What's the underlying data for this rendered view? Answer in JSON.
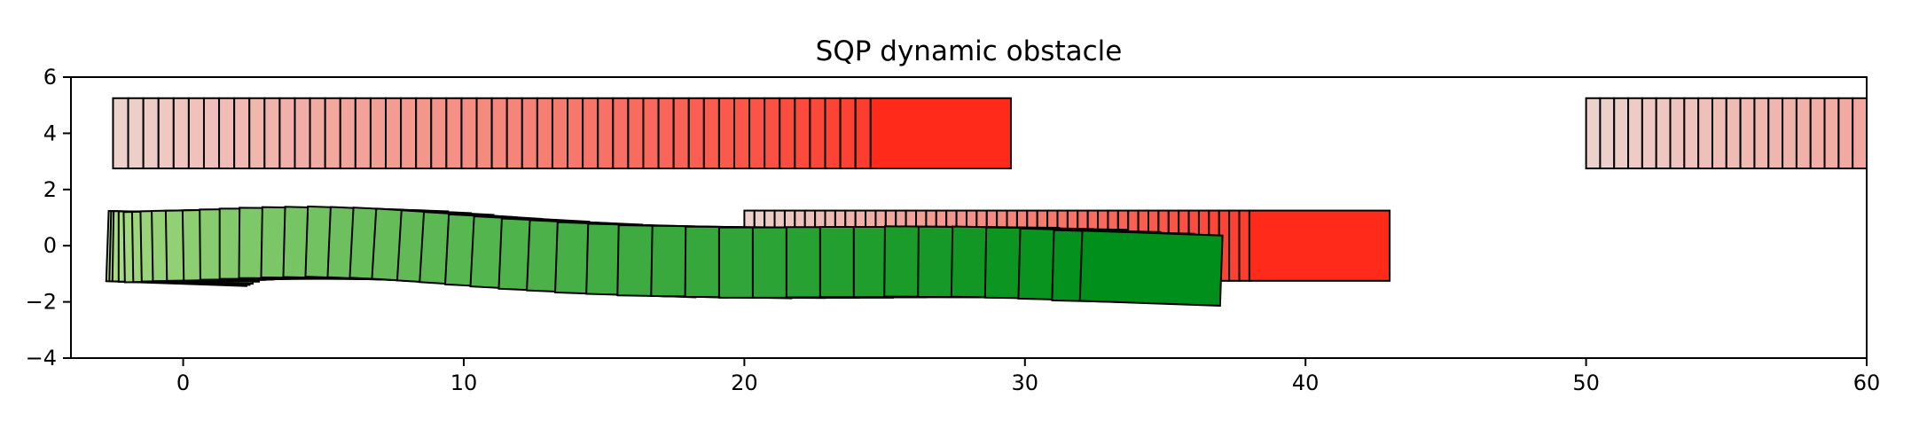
{
  "chart_data": {
    "type": "patches",
    "title": "SQP dynamic obstacle",
    "xlabel": "",
    "ylabel": "",
    "xlim": [
      -4,
      60
    ],
    "ylim": [
      -4,
      6
    ],
    "xticks": [
      0,
      10,
      20,
      30,
      40,
      50,
      60
    ],
    "yticks": [
      -4,
      -2,
      0,
      2,
      4,
      6
    ],
    "grid": false,
    "legend": "none",
    "colors": {
      "obstacle_final": "#ff2a1a",
      "obstacle_trail_start": "#edd2cc",
      "vehicle_final": "#008f1a",
      "vehicle_trail_start": "#b4e08a",
      "edge": "#000000"
    },
    "obstacles": [
      {
        "x_start": -2.5,
        "x_end": 24.5,
        "final_x": [
          24.5,
          29.5
        ],
        "y": [
          2.75,
          5.25
        ],
        "steps": 51
      },
      {
        "x_start": 20.0,
        "x_end": 38.0,
        "final_x": [
          38.0,
          43.0
        ],
        "y": [
          -1.25,
          1.25
        ],
        "steps": 51
      },
      {
        "x_start": 50.0,
        "x_end": 60.0,
        "final_x": null,
        "y": [
          2.75,
          5.25
        ],
        "steps": 21
      }
    ],
    "vehicle": {
      "length": 5.0,
      "width": 2.5,
      "final_x": [
        32.0,
        37.0
      ],
      "final_y_center": -0.8,
      "centers": [
        [
          -0.2,
          -0.1
        ],
        [
          -0.1,
          -0.08
        ],
        [
          0.0,
          -0.06
        ],
        [
          0.2,
          -0.03
        ],
        [
          0.4,
          -0.01
        ],
        [
          0.7,
          0.0
        ],
        [
          1.0,
          0.02
        ],
        [
          1.4,
          0.03
        ],
        [
          1.9,
          0.04
        ],
        [
          2.5,
          0.05
        ],
        [
          3.1,
          0.06
        ],
        [
          3.8,
          0.07
        ],
        [
          4.5,
          0.08
        ],
        [
          5.3,
          0.08
        ],
        [
          6.1,
          0.07
        ],
        [
          6.9,
          0.06
        ],
        [
          7.7,
          0.02
        ],
        [
          8.5,
          -0.02
        ],
        [
          9.3,
          -0.08
        ],
        [
          10.2,
          -0.14
        ],
        [
          11.0,
          -0.2
        ],
        [
          11.9,
          -0.26
        ],
        [
          12.8,
          -0.33
        ],
        [
          13.8,
          -0.39
        ],
        [
          14.8,
          -0.45
        ],
        [
          15.8,
          -0.5
        ],
        [
          16.9,
          -0.53
        ],
        [
          18.0,
          -0.56
        ],
        [
          19.2,
          -0.58
        ],
        [
          20.4,
          -0.59
        ],
        [
          21.6,
          -0.6
        ],
        [
          22.8,
          -0.6
        ],
        [
          24.0,
          -0.59
        ],
        [
          25.2,
          -0.58
        ],
        [
          26.4,
          -0.58
        ],
        [
          27.5,
          -0.58
        ],
        [
          28.7,
          -0.59
        ],
        [
          29.9,
          -0.61
        ],
        [
          31.1,
          -0.64
        ],
        [
          32.3,
          -0.7
        ],
        [
          33.5,
          -0.76
        ],
        [
          34.5,
          -0.8
        ]
      ],
      "headings_deg": [
        -2,
        -1.5,
        -1,
        0,
        1,
        1,
        1,
        1,
        1,
        1,
        0.5,
        0,
        -0.5,
        -1,
        -1.5,
        -2,
        -2.5,
        -3,
        -3.5,
        -3.5,
        -3.5,
        -3,
        -3,
        -2.5,
        -2.5,
        -2,
        -1.5,
        -1,
        -1,
        -0.5,
        0,
        0,
        0,
        0,
        0,
        -0.5,
        -0.5,
        -1,
        -1,
        -1.5,
        -1.5,
        -2
      ],
      "tail_line_y": -1.2,
      "tail_line_x": [
        -2.5,
        2.5
      ]
    }
  }
}
